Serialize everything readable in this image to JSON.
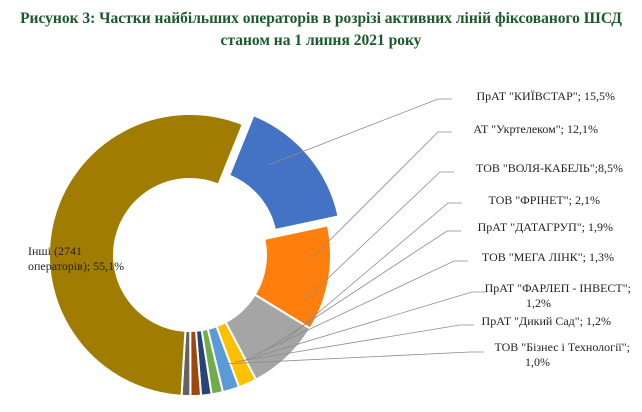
{
  "title": {
    "line1": "Рисунок 3: Частки найбільших операторів в розрізі активних ліній фіксованого ШСД",
    "line2": "станом на 1 липня 2021 року"
  },
  "chart_data": {
    "type": "pie",
    "title": "Рисунок 3: Частки найбільших операторів в розрізі активних ліній фіксованого ШСД станом на 1 липня 2021 року",
    "start_angle_deg": 22,
    "slices": [
      {
        "name": "ПрАТ \"КИЇВСТАР\"",
        "value": 15.5,
        "label": [
          "ПрАТ \"КИЇВСТАР\"; 15,5%"
        ],
        "color": "#4472c4",
        "exploded": true
      },
      {
        "name": "АТ \"Укртелеком\"",
        "value": 12.1,
        "label": [
          "АТ \"Укртелеком\"; 12,1%"
        ],
        "color": "#ff7f0e",
        "exploded": false
      },
      {
        "name": "ТОВ \"ВОЛЯ-КАБЕЛЬ\"",
        "value": 8.5,
        "label": [
          "ТОВ  \"ВОЛЯ-КАБЕЛЬ\";8,5%"
        ],
        "color": "#a5a5a5",
        "exploded": false
      },
      {
        "name": "ТОВ \"ФРІНЕТ\"",
        "value": 2.1,
        "label": [
          "ТОВ  \"ФРІНЕТ\"; 2,1%"
        ],
        "color": "#ffc000",
        "exploded": false
      },
      {
        "name": "ПрАТ \"ДАТАГРУП\"",
        "value": 1.9,
        "label": [
          "ПрАТ \"ДАТАГРУП\"; 1,9%"
        ],
        "color": "#5b9bd5",
        "exploded": false
      },
      {
        "name": "ТОВ \"МЕГА ЛІНК\"",
        "value": 1.3,
        "label": [
          "ТОВ  \"МЕГА ЛІНК\"; 1,3%"
        ],
        "color": "#70ad47",
        "exploded": false
      },
      {
        "name": "ПрАТ \"ФАРЛЕП - ІНВЕСТ\"",
        "value": 1.2,
        "label": [
          "ПрАТ \"ФАРЛЕП - ІНВЕСТ\";",
          "1,2%"
        ],
        "color": "#264478",
        "exploded": false
      },
      {
        "name": "ПрАТ \"Дикий Сад\"",
        "value": 1.2,
        "label": [
          "ПрАТ \"Дикий Сад\"; 1,2%"
        ],
        "color": "#9e480e",
        "exploded": false
      },
      {
        "name": "ТОВ \"Бізнес і Технології\"",
        "value": 1.0,
        "label": [
          "ТОВ  \"Бізнес і Технології\";",
          "1,0%"
        ],
        "color": "#636363",
        "exploded": false
      },
      {
        "name": "Інші (2741 операторів)",
        "value": 55.1,
        "label": [
          "Інші (2741",
          "операторів); 55,1%"
        ],
        "color": "#a07c00",
        "exploded": false
      }
    ]
  }
}
